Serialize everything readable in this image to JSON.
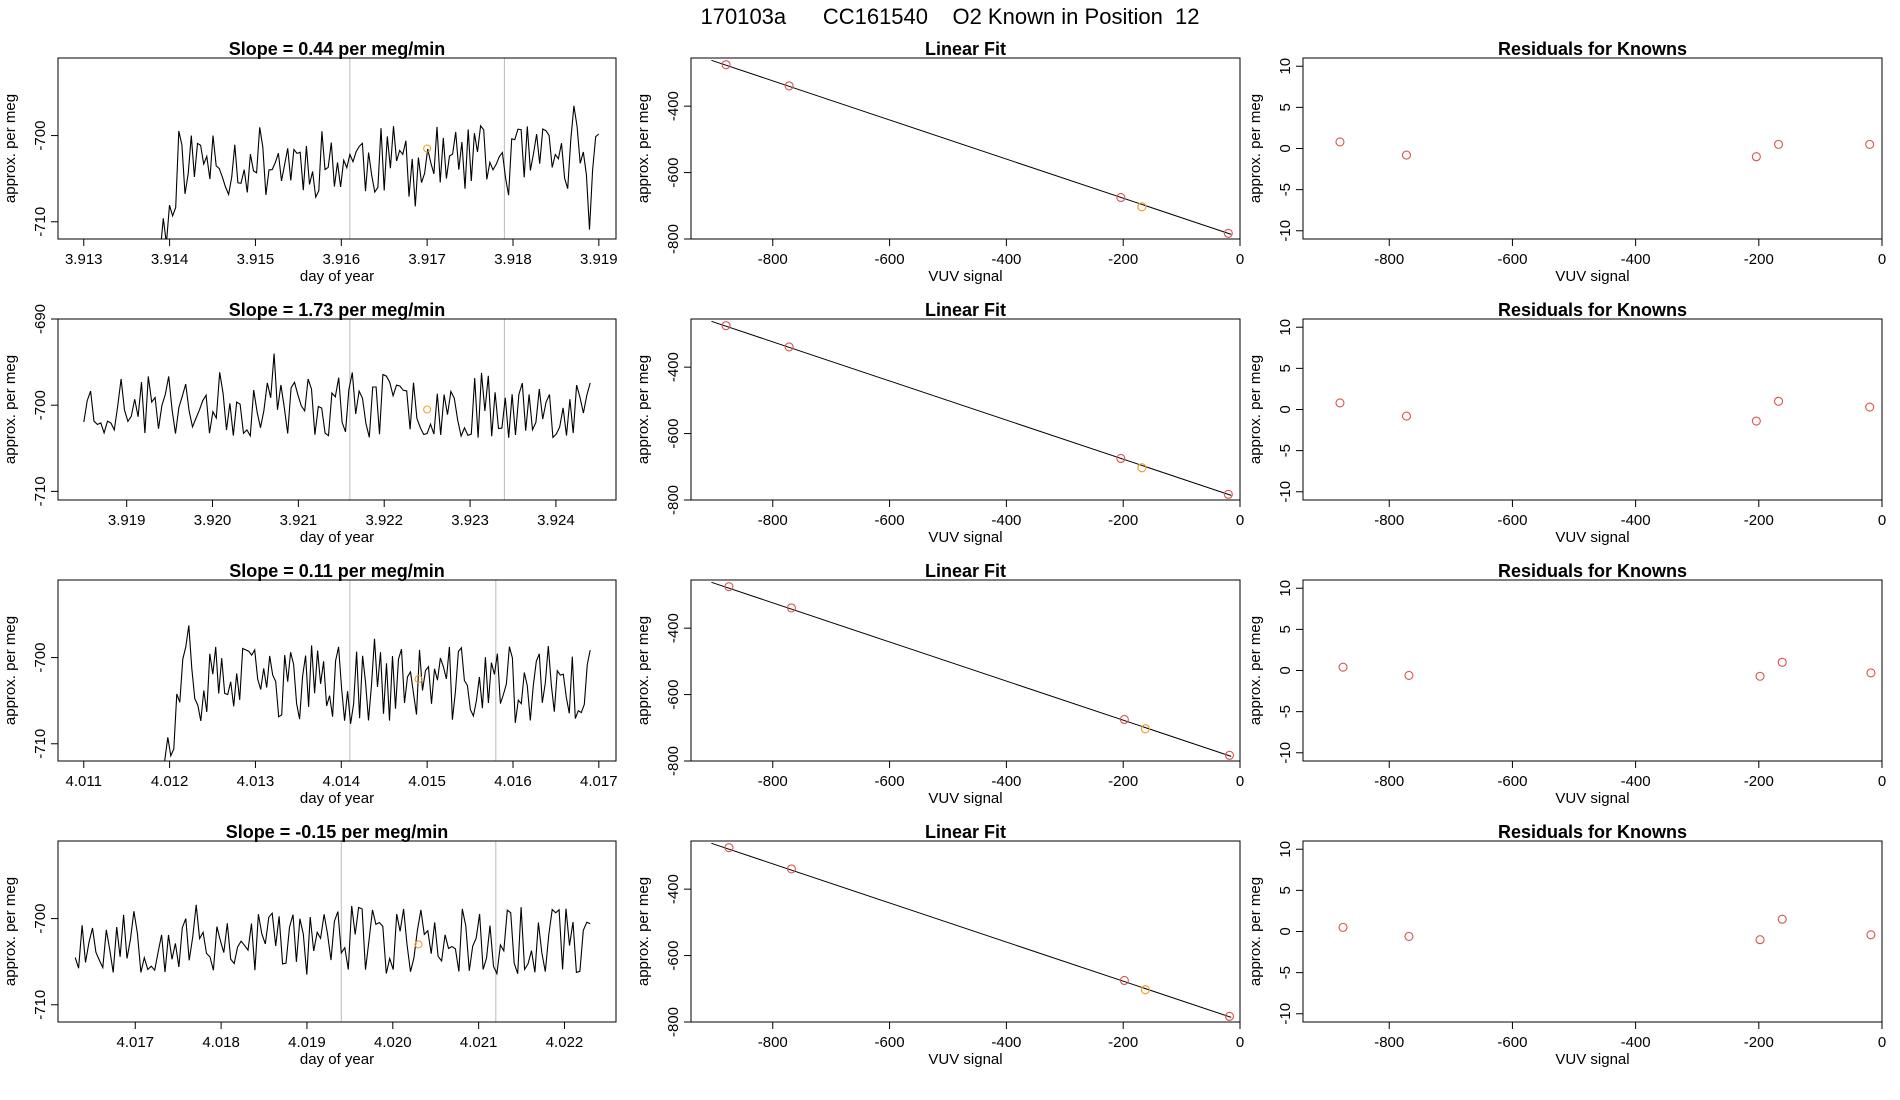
{
  "title": "170103a      CC161540    O2 Known in Position  12",
  "colors": {
    "series": "#000000",
    "known_point": "#d9534f",
    "test_point": "#f0a030",
    "vline": "#bbbbbb",
    "axes": "#000000"
  },
  "rows": [
    {
      "time": {
        "title": "Slope =  0.44  per meg/min",
        "type": "line",
        "xlabel": "day of year",
        "ylabel": "approx. per meg",
        "xlim": [
          3.9127,
          3.9192
        ],
        "ylim": [
          -712,
          -691
        ],
        "xticks": [
          "3.913",
          "3.914",
          "3.915",
          "3.916",
          "3.917",
          "3.918",
          "3.919"
        ],
        "yticks": [
          "-700",
          "-710"
        ],
        "start": 3.9136,
        "end": 3.919,
        "base": -703,
        "amp": 2.6,
        "seed": 11,
        "ramp": true,
        "vlines": [
          3.9161,
          3.9179
        ],
        "marker": {
          "x": 3.917,
          "y": -701.5
        }
      },
      "fit": {
        "title": "Linear Fit",
        "type": "scatter",
        "xlabel": "VUV signal",
        "ylabel": "approx. per meg",
        "xlim": [
          -940,
          0
        ],
        "ylim": [
          -800,
          -255
        ],
        "xticks": [
          "-800",
          "-600",
          "-400",
          "-200",
          "0"
        ],
        "yticks": [
          "-400",
          "-600",
          "-800"
        ],
        "line": [
          [
            -905,
            -262
          ],
          [
            -15,
            -786
          ]
        ],
        "points": [
          [
            -880,
            -275
          ],
          [
            -772,
            -339
          ],
          [
            -204,
            -675
          ],
          [
            -20,
            -783
          ]
        ],
        "test_point": [
          -168,
          -703
        ]
      },
      "residuals": {
        "title": "Residuals for Knowns",
        "type": "scatter",
        "xlabel": "VUV signal",
        "ylabel": "approx. per meg",
        "xlim": [
          -940,
          0
        ],
        "ylim": [
          -11,
          11
        ],
        "xticks": [
          "-800",
          "-600",
          "-400",
          "-200",
          "0"
        ],
        "yticks": [
          "10",
          "5",
          "0",
          "-5",
          "-10"
        ],
        "points": [
          [
            -880,
            0.8
          ],
          [
            -772,
            -0.8
          ],
          [
            -204,
            -1.0
          ],
          [
            -168,
            0.5
          ],
          [
            -20,
            0.5
          ]
        ]
      }
    },
    {
      "time": {
        "title": "Slope =  1.73  per meg/min",
        "type": "line",
        "xlabel": "day of year",
        "ylabel": "approx. per meg",
        "xlim": [
          3.9182,
          3.9247
        ],
        "ylim": [
          -711,
          -690
        ],
        "xticks": [
          "3.919",
          "3.920",
          "3.921",
          "3.922",
          "3.923",
          "3.924"
        ],
        "yticks": [
          "-690",
          "-700",
          "-710"
        ],
        "start": 3.9185,
        "end": 3.9244,
        "base": -700,
        "amp": 2.4,
        "seed": 23,
        "ramp": false,
        "vlines": [
          3.9216,
          3.9234
        ],
        "marker": {
          "x": 3.9225,
          "y": -700.5
        }
      },
      "fit": {
        "title": "Linear Fit",
        "type": "scatter",
        "xlabel": "VUV signal",
        "ylabel": "approx. per meg",
        "xlim": [
          -940,
          0
        ],
        "ylim": [
          -800,
          -255
        ],
        "xticks": [
          "-800",
          "-600",
          "-400",
          "-200",
          "0"
        ],
        "yticks": [
          "-400",
          "-600",
          "-800"
        ],
        "line": [
          [
            -905,
            -262
          ],
          [
            -15,
            -786
          ]
        ],
        "points": [
          [
            -880,
            -275
          ],
          [
            -772,
            -339
          ],
          [
            -204,
            -675
          ],
          [
            -20,
            -783
          ]
        ],
        "test_point": [
          -168,
          -703
        ]
      },
      "residuals": {
        "title": "Residuals for Knowns",
        "type": "scatter",
        "xlabel": "VUV signal",
        "ylabel": "approx. per meg",
        "xlim": [
          -940,
          0
        ],
        "ylim": [
          -11,
          11
        ],
        "xticks": [
          "-800",
          "-600",
          "-400",
          "-200",
          "0"
        ],
        "yticks": [
          "10",
          "5",
          "0",
          "-5",
          "-10"
        ],
        "points": [
          [
            -880,
            0.8
          ],
          [
            -772,
            -0.8
          ],
          [
            -204,
            -1.4
          ],
          [
            -168,
            1.0
          ],
          [
            -20,
            0.3
          ]
        ]
      }
    },
    {
      "time": {
        "title": "Slope =  0.11  per meg/min",
        "type": "line",
        "xlabel": "day of year",
        "ylabel": "approx. per meg",
        "xlim": [
          4.0107,
          4.0172
        ],
        "ylim": [
          -712,
          -691
        ],
        "xticks": [
          "4.011",
          "4.012",
          "4.013",
          "4.014",
          "4.015",
          "4.016",
          "4.017"
        ],
        "yticks": [
          "-700",
          "-710"
        ],
        "start": 4.0117,
        "end": 4.0169,
        "base": -703,
        "amp": 2.8,
        "seed": 37,
        "ramp": true,
        "vlines": [
          4.0141,
          4.0158
        ],
        "marker": {
          "x": 4.0149,
          "y": -702.5
        }
      },
      "fit": {
        "title": "Linear Fit",
        "type": "scatter",
        "xlabel": "VUV signal",
        "ylabel": "approx. per meg",
        "xlim": [
          -940,
          0
        ],
        "ylim": [
          -800,
          -255
        ],
        "xticks": [
          "-800",
          "-600",
          "-400",
          "-200",
          "0"
        ],
        "yticks": [
          "-400",
          "-600",
          "-800"
        ],
        "line": [
          [
            -905,
            -262
          ],
          [
            -15,
            -786
          ]
        ],
        "points": [
          [
            -875,
            -275
          ],
          [
            -768,
            -339
          ],
          [
            -198,
            -675
          ],
          [
            -18,
            -783
          ]
        ],
        "test_point": [
          -162,
          -703
        ]
      },
      "residuals": {
        "title": "Residuals for Knowns",
        "type": "scatter",
        "xlabel": "VUV signal",
        "ylabel": "approx. per meg",
        "xlim": [
          -940,
          0
        ],
        "ylim": [
          -11,
          11
        ],
        "xticks": [
          "-800",
          "-600",
          "-400",
          "-200",
          "0"
        ],
        "yticks": [
          "10",
          "5",
          "0",
          "-5",
          "-10"
        ],
        "points": [
          [
            -875,
            0.4
          ],
          [
            -768,
            -0.6
          ],
          [
            -198,
            -0.7
          ],
          [
            -162,
            1.0
          ],
          [
            -18,
            -0.3
          ]
        ]
      }
    },
    {
      "time": {
        "title": "Slope =  -0.15  per meg/min",
        "type": "line",
        "xlabel": "day of year",
        "ylabel": "approx. per meg",
        "xlim": [
          4.0161,
          4.0226
        ],
        "ylim": [
          -712,
          -691
        ],
        "xticks": [
          "4.017",
          "4.018",
          "4.019",
          "4.020",
          "4.021",
          "4.022"
        ],
        "yticks": [
          "-700",
          "-710"
        ],
        "start": 4.0163,
        "end": 4.0223,
        "base": -702.5,
        "amp": 2.6,
        "seed": 53,
        "ramp": false,
        "vlines": [
          4.0194,
          4.0212
        ],
        "marker": {
          "x": 4.0203,
          "y": -703
        }
      },
      "fit": {
        "title": "Linear Fit",
        "type": "scatter",
        "xlabel": "VUV signal",
        "ylabel": "approx. per meg",
        "xlim": [
          -940,
          0
        ],
        "ylim": [
          -800,
          -255
        ],
        "xticks": [
          "-800",
          "-600",
          "-400",
          "-200",
          "0"
        ],
        "yticks": [
          "-400",
          "-600",
          "-800"
        ],
        "line": [
          [
            -905,
            -262
          ],
          [
            -15,
            -786
          ]
        ],
        "points": [
          [
            -875,
            -275
          ],
          [
            -768,
            -339
          ],
          [
            -198,
            -675
          ],
          [
            -18,
            -783
          ]
        ],
        "test_point": [
          -162,
          -703
        ]
      },
      "residuals": {
        "title": "Residuals for Knowns",
        "type": "scatter",
        "xlabel": "VUV signal",
        "ylabel": "approx. per meg",
        "xlim": [
          -940,
          0
        ],
        "ylim": [
          -11,
          11
        ],
        "xticks": [
          "-800",
          "-600",
          "-400",
          "-200",
          "0"
        ],
        "yticks": [
          "10",
          "5",
          "0",
          "-5",
          "-10"
        ],
        "points": [
          [
            -875,
            0.5
          ],
          [
            -768,
            -0.6
          ],
          [
            -198,
            -1.0
          ],
          [
            -162,
            1.5
          ],
          [
            -18,
            -0.4
          ]
        ]
      }
    }
  ]
}
